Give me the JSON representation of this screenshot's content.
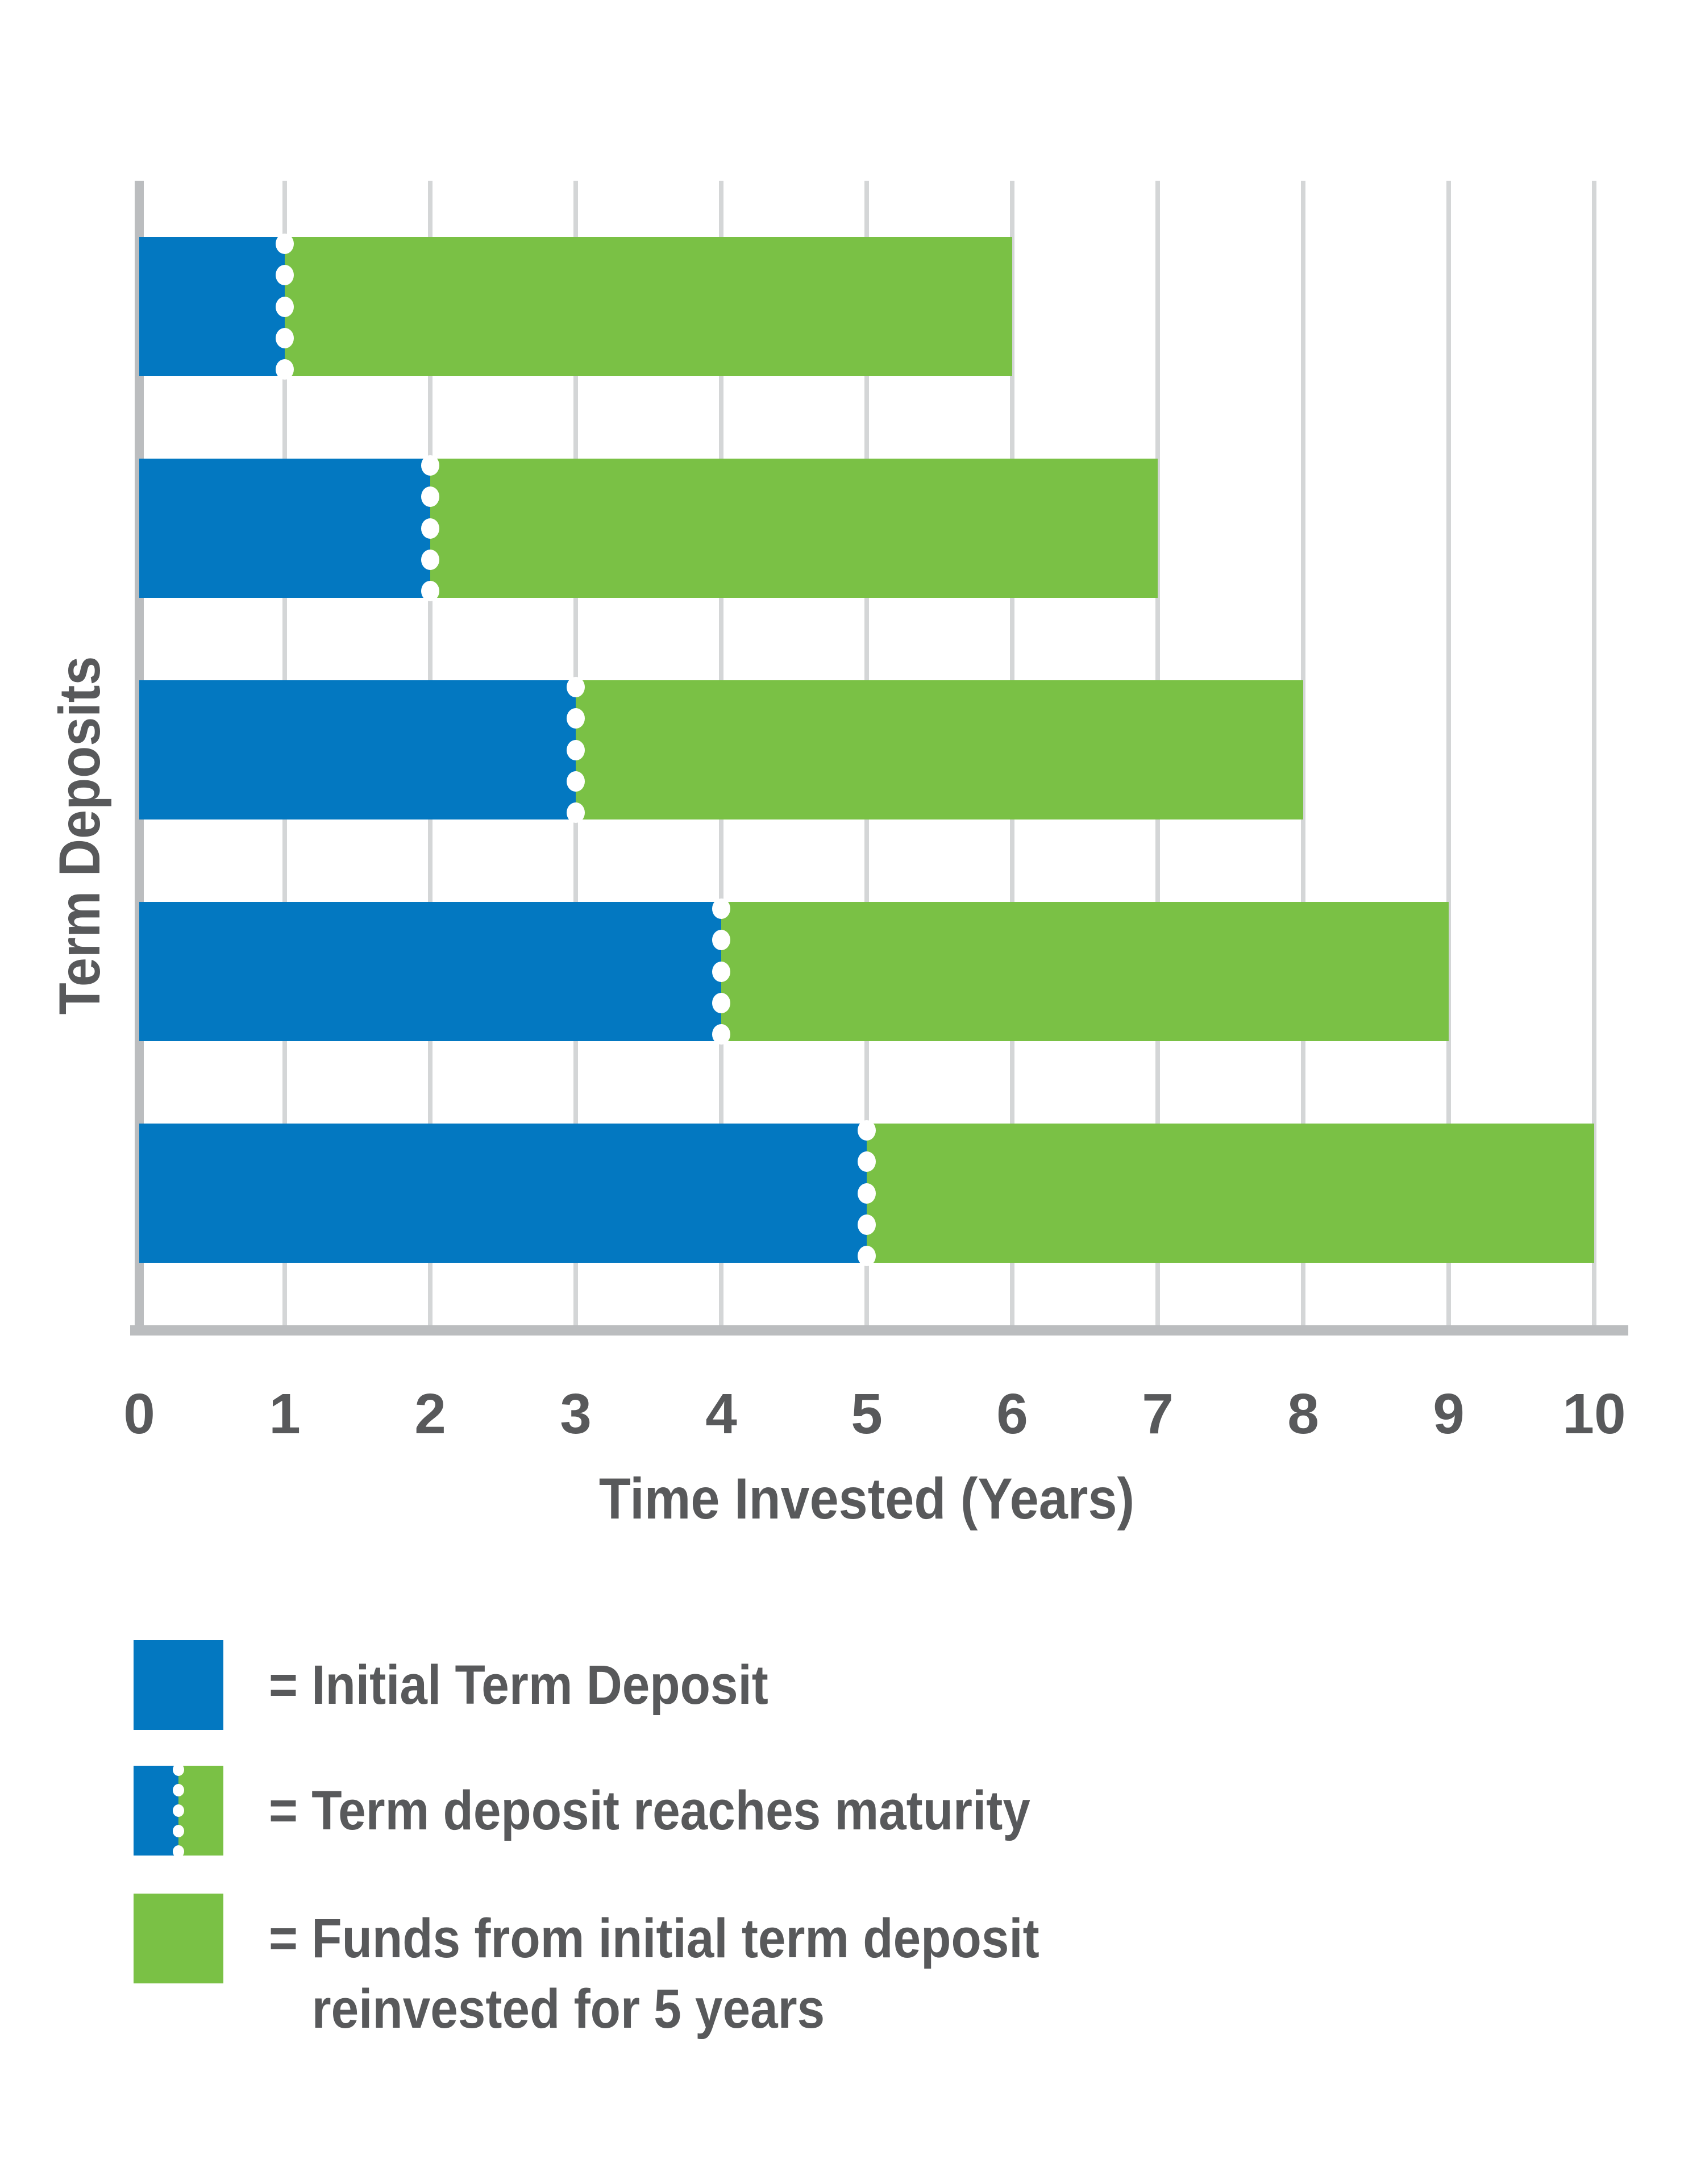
{
  "chart_data": {
    "type": "bar",
    "orientation": "horizontal",
    "title": "",
    "xlabel": "Time Invested (Years)",
    "ylabel": "Term Deposits",
    "xlim": [
      0,
      10
    ],
    "x_ticks": [
      0,
      1,
      2,
      3,
      4,
      5,
      6,
      7,
      8,
      9,
      10
    ],
    "grid": "vertical gridlines only",
    "legend_position": "below",
    "series": [
      {
        "name": "Initial Term Deposit",
        "color": "#0378C1",
        "values": [
          1,
          2,
          3,
          4,
          5
        ]
      },
      {
        "name": "Funds from initial term deposit reinvested for 5 years",
        "color": "#7AC145",
        "values": [
          5,
          5,
          5,
          5,
          5
        ]
      }
    ],
    "bar_totals": [
      6,
      7,
      8,
      9,
      10
    ],
    "maturity_marker_x": [
      1,
      2,
      3,
      4,
      5
    ],
    "maturity_dots_per_line": 5
  },
  "legend": {
    "items": [
      {
        "swatch": "initial-term-deposit",
        "label": "= Initial Term Deposit"
      },
      {
        "swatch": "term-deposit-reaches-maturity",
        "label": "= Term deposit reaches maturity"
      },
      {
        "swatch": "funds-reinvested",
        "label_line1": "= Funds from initial term deposit",
        "label_line2": "reinvested for 5 years"
      }
    ]
  },
  "colors": {
    "initial_blue": "#0378C1",
    "reinvested_green": "#7AC145",
    "axis_gray": "#BBBDBF",
    "gridline_gray": "#D4D6D7",
    "text_gray": "#58595B",
    "maturity_dot_white": "#FFFFFF",
    "background": "#FFFFFF"
  }
}
